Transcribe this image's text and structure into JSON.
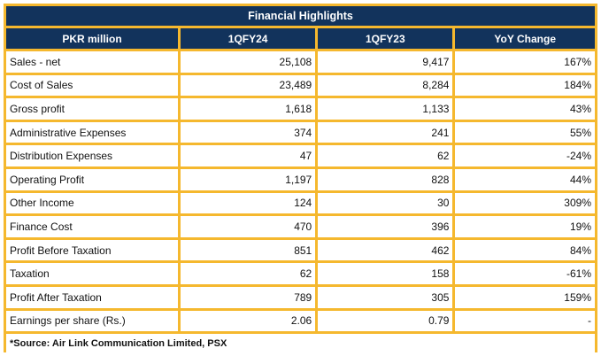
{
  "title": "Financial Highlights",
  "columns": [
    "PKR million",
    "1QFY24",
    "1QFY23",
    "YoY Change"
  ],
  "rows": [
    {
      "label": "Sales - net",
      "q24": "25,108",
      "q23": "9,417",
      "yoy": "167%"
    },
    {
      "label": "Cost of Sales",
      "q24": "23,489",
      "q23": "8,284",
      "yoy": "184%"
    },
    {
      "label": "Gross profit",
      "q24": "1,618",
      "q23": "1,133",
      "yoy": "43%"
    },
    {
      "label": "Administrative Expenses",
      "q24": "374",
      "q23": "241",
      "yoy": "55%"
    },
    {
      "label": "Distribution Expenses",
      "q24": "47",
      "q23": "62",
      "yoy": "-24%"
    },
    {
      "label": "Operating Profit",
      "q24": "1,197",
      "q23": "828",
      "yoy": "44%"
    },
    {
      "label": "Other Income",
      "q24": "124",
      "q23": "30",
      "yoy": "309%"
    },
    {
      "label": "Finance Cost",
      "q24": "470",
      "q23": "396",
      "yoy": "19%"
    },
    {
      "label": "Profit Before Taxation",
      "q24": "851",
      "q23": "462",
      "yoy": "84%"
    },
    {
      "label": "Taxation",
      "q24": "62",
      "q23": "158",
      "yoy": "-61%"
    },
    {
      "label": "Profit After Taxation",
      "q24": "789",
      "q23": "305",
      "yoy": "159%"
    },
    {
      "label": "Earnings per share (Rs.)",
      "q24": "2.06",
      "q23": "0.79",
      "yoy": "-"
    }
  ],
  "source": "*Source: Air Link Communication Limited, PSX",
  "colors": {
    "header_bg": "#12335c",
    "border": "#f5b82e",
    "header_text": "#ffffff"
  }
}
